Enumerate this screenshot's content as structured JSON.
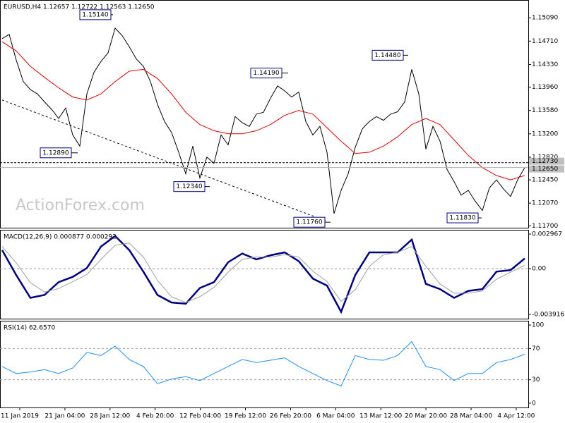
{
  "chart_data": [
    {
      "type": "line",
      "title": "EURUSD,H4  1.12657 1.12722 1.12563 1.12650",
      "watermark": "ActionForex.com",
      "ylim": [
        1.1167,
        1.1538
      ],
      "yticks": [
        {
          "value": 1.1509,
          "label": "1.15090"
        },
        {
          "value": 1.1471,
          "label": "1.14710"
        },
        {
          "value": 1.1433,
          "label": "1.14330"
        },
        {
          "value": 1.1396,
          "label": "1.13960"
        },
        {
          "value": 1.1358,
          "label": "1.13580"
        },
        {
          "value": 1.132,
          "label": "1.13200"
        },
        {
          "value": 1.1282,
          "label": "1.12820"
        },
        {
          "value": 1.1245,
          "label": "1.12450"
        },
        {
          "value": 1.1207,
          "label": "1.12070"
        },
        {
          "value": 1.117,
          "label": "1.11700"
        }
      ],
      "series": [
        {
          "color": "#000000",
          "values": [
            1.1475,
            1.1482,
            1.144,
            1.1405,
            1.1392,
            1.1385,
            1.1372,
            1.136,
            1.1345,
            1.1362,
            1.1318,
            1.13,
            1.1385,
            1.142,
            1.1438,
            1.1452,
            1.1492,
            1.148,
            1.1462,
            1.1442,
            1.143,
            1.1405,
            1.1368,
            1.134,
            1.1322,
            1.129,
            1.1255,
            1.13,
            1.1248,
            1.1282,
            1.1272,
            1.1318,
            1.1302,
            1.1348,
            1.1338,
            1.1332,
            1.1352,
            1.1355,
            1.1378,
            1.1398,
            1.139,
            1.138,
            1.1388,
            1.134,
            1.1318,
            1.1332,
            1.129,
            1.119,
            1.1228,
            1.1255,
            1.1298,
            1.1328,
            1.134,
            1.1348,
            1.1342,
            1.1352,
            1.1356,
            1.1372,
            1.1425,
            1.1385,
            1.1295,
            1.1332,
            1.1308,
            1.1262,
            1.1242,
            1.122,
            1.1228,
            1.121,
            1.1195,
            1.1232,
            1.1245,
            1.123,
            1.1218,
            1.1245,
            1.1265
          ]
        },
        {
          "color": "#e00000",
          "values": [
            1.147,
            1.1455,
            1.143,
            1.1412,
            1.1395,
            1.138,
            1.1375,
            1.1385,
            1.1405,
            1.1422,
            1.1425,
            1.141,
            1.1385,
            1.1355,
            1.1335,
            1.1325,
            1.132,
            1.132,
            1.1325,
            1.1335,
            1.135,
            1.1358,
            1.1352,
            1.133,
            1.1308,
            1.1288,
            1.129,
            1.13,
            1.1315,
            1.1335,
            1.1345,
            1.1335,
            1.131,
            1.1285,
            1.1265,
            1.1252,
            1.1245,
            1.1252
          ]
        }
      ],
      "trendline": [
        1.1375,
        1.1178
      ],
      "price_lines": [
        {
          "value": 1.1273,
          "label": "1.12730"
        },
        {
          "value": 1.1265,
          "label": "1.12650"
        }
      ],
      "annotations": [
        {
          "value": 1.1514,
          "label": "1.15140"
        },
        {
          "value": 1.1289,
          "label": "1.12890"
        },
        {
          "value": 1.1234,
          "label": "1.12340"
        },
        {
          "value": 1.1419,
          "label": "1.14190"
        },
        {
          "value": 1.1176,
          "label": "1.11760"
        },
        {
          "value": 1.1448,
          "label": "1.14480"
        },
        {
          "value": 1.1183,
          "label": "1.11830"
        }
      ]
    },
    {
      "type": "line",
      "title": "MACD(12,26,9) 0.000877 0.000292",
      "ylim": [
        -0.004281,
        0.003332
      ],
      "yticks": [
        0.002967,
        {
          "value": 0,
          "label": "0.00"
        },
        -0.003916
      ],
      "series": [
        {
          "color": "#000080",
          "values": [
            0.0016,
            -0.00055,
            -0.0025,
            -0.00225,
            -0.00115,
            -0.0007,
            6e-05,
            0.0019,
            0.0028,
            0.0016,
            -0.00025,
            -0.00225,
            -0.0029,
            -0.003,
            -0.00165,
            -0.00115,
            0.00055,
            0.0013,
            0.0008,
            0.00115,
            0.0014,
            0.00065,
            -0.00085,
            -0.00145,
            -0.0037,
            -0.00055,
            0.0014,
            0.0014,
            0.0014,
            0.0025,
            -0.0013,
            -0.00175,
            -0.0025,
            -0.0019,
            -0.00175,
            -0.00025,
            -0.00012,
            0.000877
          ]
        },
        {
          "color": "#a0a0a0",
          "values": [
            0.0019,
            0.0005,
            -0.0012,
            -0.002,
            -0.0017,
            -0.0011,
            -0.0005,
            0.0008,
            0.002,
            0.0022,
            0.001,
            -0.001,
            -0.0024,
            -0.0029,
            -0.0024,
            -0.0016,
            -0.0003,
            0.0008,
            0.001,
            0.001,
            0.0012,
            0.001,
            -0.0002,
            -0.0011,
            -0.0028,
            -0.0018,
            0.0002,
            0.0012,
            0.0014,
            0.0019,
            0.0002,
            -0.0013,
            -0.0021,
            -0.0021,
            -0.0019,
            -0.0009,
            -0.0003,
            0.000292
          ]
        }
      ]
    },
    {
      "type": "line",
      "title": "RSI(14) 62.6570",
      "ylim": [
        -5.5,
        105.5
      ],
      "yticks": [
        100,
        70,
        30,
        0
      ],
      "series": [
        {
          "color": "#1e90ff",
          "values": [
            47,
            38,
            40,
            43,
            38,
            45,
            65,
            61,
            73,
            56,
            47,
            25,
            31,
            34,
            29,
            38,
            47,
            56,
            52,
            55,
            58,
            47,
            38,
            29,
            22,
            61,
            56,
            55,
            61,
            79,
            47,
            43,
            29,
            38,
            38,
            52,
            56,
            62.657
          ]
        }
      ],
      "x_tick_labels": [
        "11 Jan 2019",
        "21 Jan 04:00",
        "28 Jan 12:00",
        "4 Feb 20:00",
        "12 Feb 04:00",
        "19 Feb 12:00",
        "26 Feb 20:00",
        "6 Mar 04:00",
        "13 Mar 12:00",
        "20 Mar 20:00",
        "28 Mar 04:00",
        "4 Apr 12:00"
      ]
    }
  ]
}
